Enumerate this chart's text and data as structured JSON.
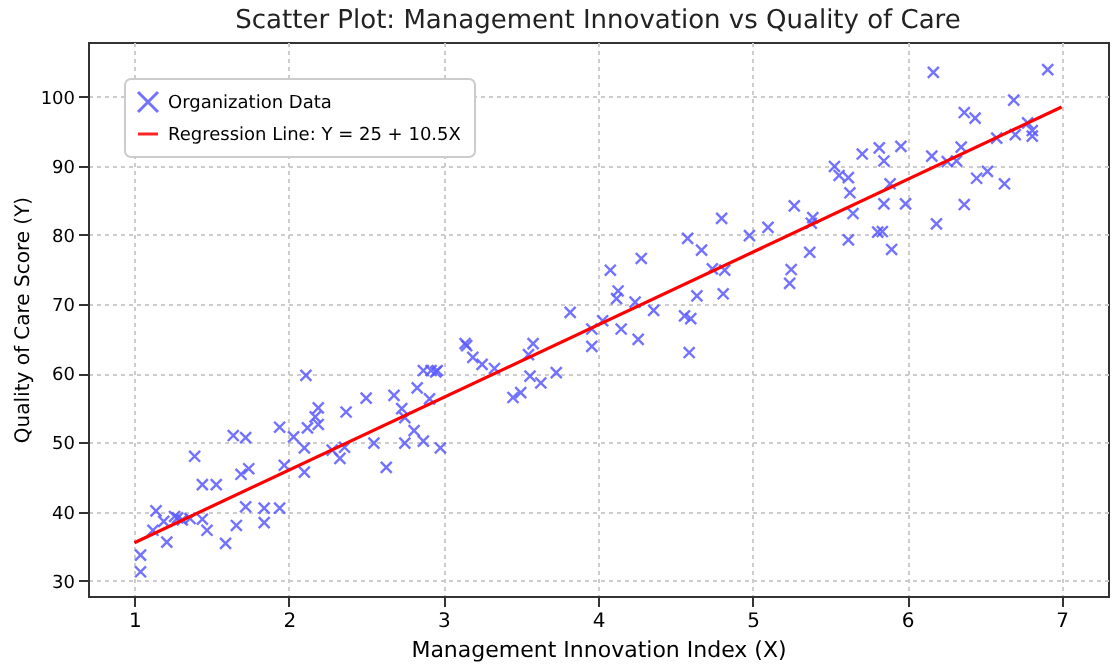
{
  "chart_data": {
    "type": "scatter",
    "title": "Scatter Plot: Management Innovation vs Quality of Care",
    "xlabel": "Management Innovation Index (X)",
    "ylabel": "Quality of Care Score (Y)",
    "xlim": [
      0.7,
      7.3
    ],
    "ylim": [
      27.8,
      107.9
    ],
    "xticks": [
      1,
      2,
      3,
      4,
      5,
      6,
      7
    ],
    "yticks": [
      30,
      40,
      50,
      60,
      70,
      80,
      90,
      100
    ],
    "grid": true,
    "legend": "top left",
    "series": [
      {
        "name": "Organization Data",
        "color": "#5a5aff",
        "marker": "cross",
        "x": [
          1.04,
          1.04,
          1.14,
          1.12,
          1.19,
          1.21,
          1.26,
          1.28,
          1.31,
          1.36,
          1.39,
          1.44,
          1.44,
          1.47,
          1.53,
          1.59,
          1.64,
          1.66,
          1.69,
          1.72,
          1.72,
          1.74,
          1.84,
          1.84,
          1.94,
          1.94,
          1.97,
          2.03,
          2.1,
          2.1,
          2.11,
          2.12,
          2.17,
          2.19,
          2.19,
          2.28,
          2.33,
          2.36,
          2.37,
          2.5,
          2.55,
          2.63,
          2.68,
          2.73,
          2.75,
          2.75,
          2.81,
          2.83,
          2.87,
          2.87,
          2.92,
          2.91,
          2.96,
          2.95,
          2.98,
          3.14,
          3.15,
          3.19,
          3.25,
          3.33,
          3.45,
          3.5,
          3.55,
          3.56,
          3.58,
          3.63,
          3.73,
          3.82,
          3.96,
          3.96,
          4.03,
          4.08,
          4.13,
          4.12,
          4.15,
          4.24,
          4.26,
          4.28,
          4.36,
          4.56,
          4.6,
          4.59,
          4.58,
          4.64,
          4.67,
          4.74,
          4.82,
          4.81,
          4.8,
          4.98,
          5.1,
          5.25,
          5.24,
          5.27,
          5.37,
          5.38,
          5.39,
          5.53,
          5.56,
          5.62,
          5.63,
          5.62,
          5.65,
          5.71,
          5.82,
          5.85,
          5.81,
          5.84,
          5.89,
          5.85,
          5.9,
          5.96,
          5.99,
          6.17,
          6.16,
          6.19,
          6.26,
          6.32,
          6.35,
          6.37,
          6.37,
          6.44,
          6.45,
          6.52,
          6.58,
          6.63,
          6.69,
          6.7,
          6.78,
          6.81,
          6.81,
          6.91
        ],
        "values": [
          33.7,
          31.3,
          40.1,
          37.3,
          38.6,
          35.6,
          39.3,
          39.1,
          38.8,
          39.0,
          48.0,
          38.9,
          43.9,
          37.3,
          43.9,
          35.4,
          51.0,
          38.0,
          45.4,
          50.7,
          40.7,
          46.2,
          40.5,
          38.4,
          40.5,
          52.2,
          46.7,
          50.8,
          45.7,
          49.2,
          59.7,
          52.1,
          53.7,
          55.0,
          52.6,
          48.9,
          47.7,
          49.3,
          54.4,
          56.4,
          49.9,
          46.4,
          56.8,
          54.9,
          53.6,
          49.9,
          51.7,
          57.9,
          50.2,
          60.4,
          60.4,
          56.3,
          60.4,
          60.2,
          49.2,
          64.3,
          64.0,
          62.3,
          61.3,
          60.7,
          56.5,
          57.2,
          62.7,
          59.6,
          64.3,
          58.6,
          60.1,
          68.8,
          66.4,
          63.9,
          67.6,
          74.9,
          71.9,
          70.8,
          66.4,
          70.3,
          64.9,
          76.6,
          69.1,
          68.3,
          67.9,
          63.0,
          79.5,
          71.2,
          77.8,
          75.1,
          74.9,
          71.5,
          82.4,
          79.9,
          81.1,
          75.0,
          73.0,
          84.2,
          77.5,
          81.7,
          82.5,
          89.9,
          88.6,
          88.3,
          86.1,
          79.3,
          83.1,
          91.7,
          92.6,
          90.7,
          80.4,
          80.5,
          87.4,
          84.5,
          77.9,
          92.8,
          84.5,
          103.5,
          91.4,
          81.6,
          90.6,
          90.7,
          92.7,
          97.7,
          84.4,
          96.9,
          88.2,
          89.2,
          94.0,
          87.4,
          99.5,
          94.5,
          96.2,
          95.1,
          94.3,
          103.9
        ]
      },
      {
        "name": "Regression Line: Y = 25 + 10.5X",
        "type": "line",
        "color": "#ff0000",
        "marker": "none",
        "line_style": "solid",
        "x": [
          1,
          7
        ],
        "values": [
          35.5,
          98.5
        ]
      }
    ]
  }
}
